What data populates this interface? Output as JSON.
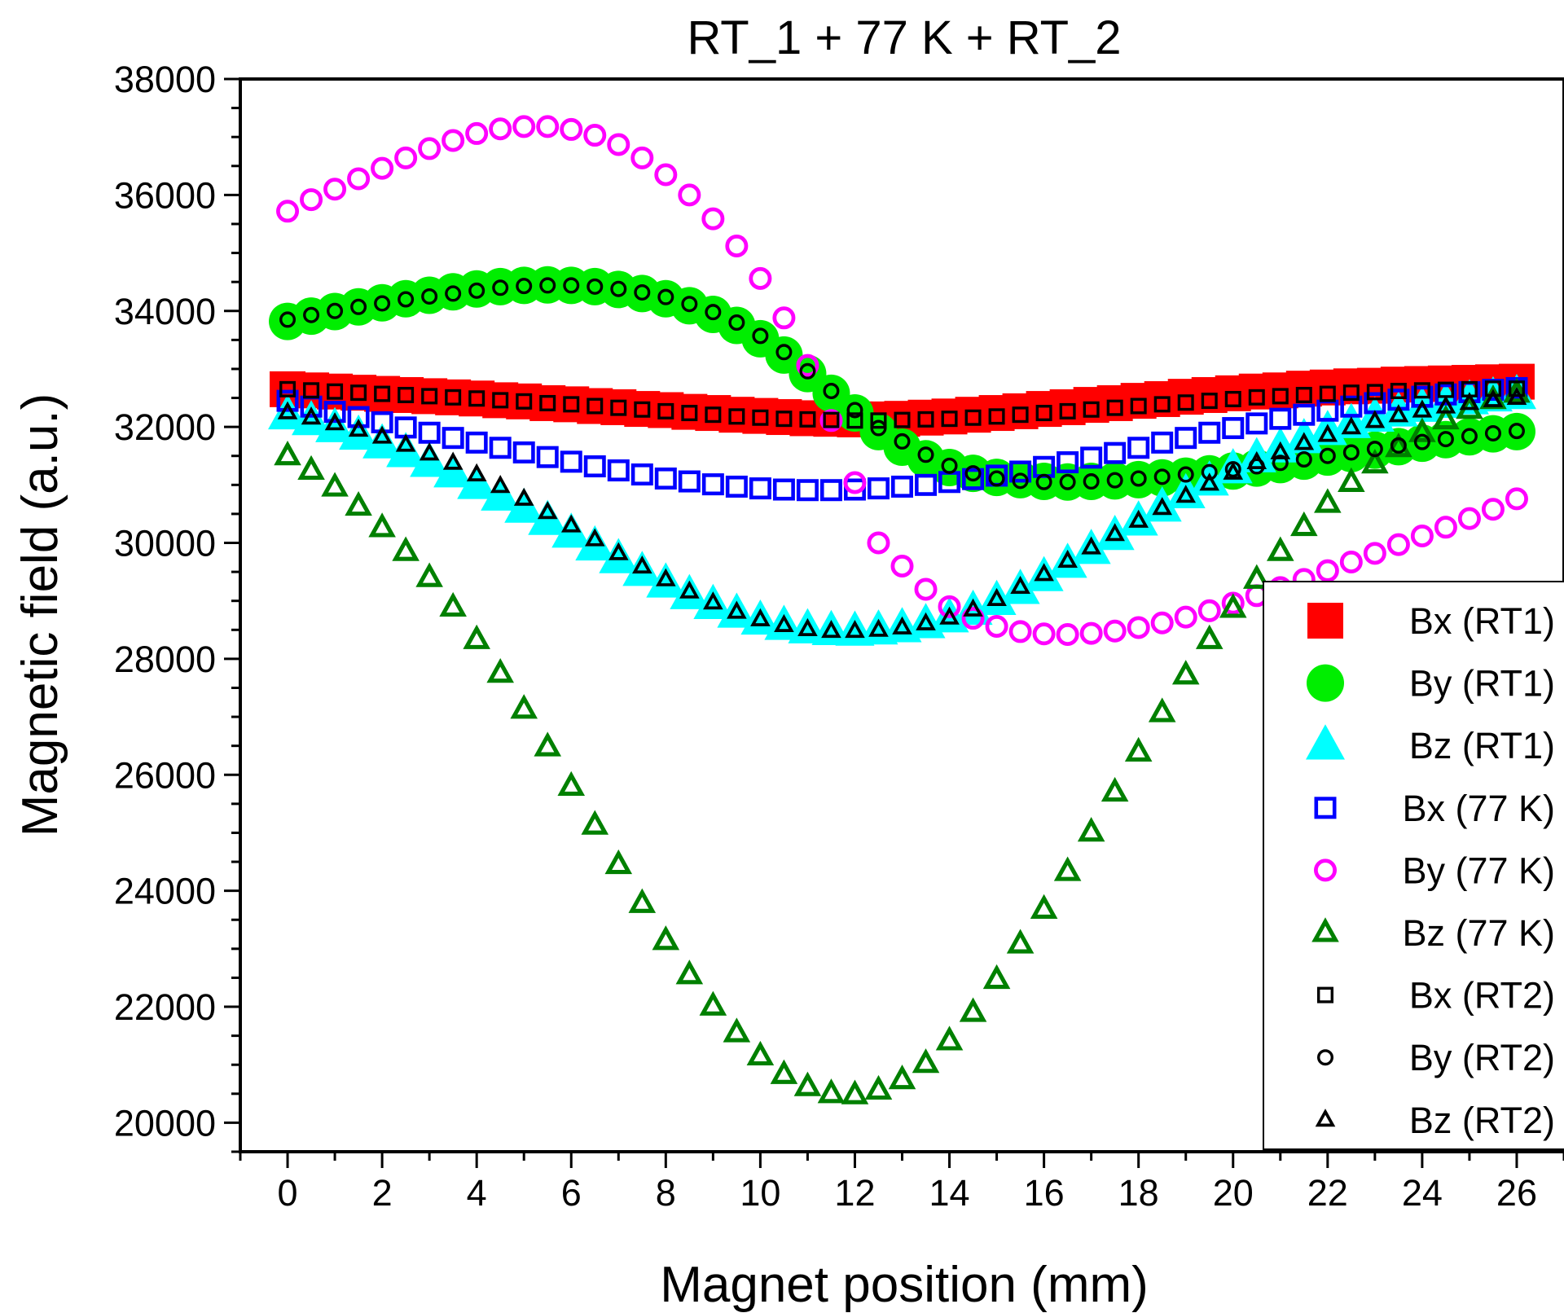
{
  "chart_data": {
    "type": "scatter",
    "title": "RT_1 + 77 K + RT_2",
    "xlabel": "Magnet position (mm)",
    "ylabel": "Magnetic field (a.u.)",
    "xlim": [
      -1,
      27
    ],
    "ylim": [
      19500,
      38000
    ],
    "xticks": [
      0,
      2,
      4,
      6,
      8,
      10,
      12,
      14,
      16,
      18,
      20,
      22,
      24,
      26
    ],
    "yticks": [
      20000,
      22000,
      24000,
      26000,
      28000,
      30000,
      32000,
      34000,
      36000,
      38000
    ],
    "legend_position": "right",
    "x": [
      0,
      0.5,
      1,
      1.5,
      2,
      2.5,
      3,
      3.5,
      4,
      4.5,
      5,
      5.5,
      6,
      6.5,
      7,
      7.5,
      8,
      8.5,
      9,
      9.5,
      10,
      10.5,
      11,
      11.5,
      12,
      12.5,
      13,
      13.5,
      14,
      14.5,
      15,
      15.5,
      16,
      16.5,
      17,
      17.5,
      18,
      18.5,
      19,
      19.5,
      20,
      20.5,
      21,
      21.5,
      22,
      22.5,
      23,
      23.5,
      24,
      24.5,
      25,
      25.5,
      26
    ],
    "series": [
      {
        "name": "Bx (RT1)",
        "marker": "square",
        "filled": true,
        "color": "#ff0000",
        "size": 44,
        "values": [
          32650,
          32630,
          32610,
          32590,
          32570,
          32550,
          32530,
          32510,
          32490,
          32460,
          32440,
          32410,
          32390,
          32360,
          32340,
          32310,
          32290,
          32260,
          32240,
          32210,
          32190,
          32170,
          32150,
          32140,
          32130,
          32130,
          32140,
          32160,
          32180,
          32210,
          32240,
          32270,
          32310,
          32340,
          32380,
          32410,
          32450,
          32480,
          32520,
          32550,
          32580,
          32610,
          32630,
          32660,
          32680,
          32700,
          32710,
          32730,
          32740,
          32750,
          32760,
          32770,
          32780
        ]
      },
      {
        "name": "By (RT1)",
        "marker": "circle",
        "filled": true,
        "color": "#00ee00",
        "size": 46,
        "values": [
          33820,
          33910,
          33990,
          34070,
          34140,
          34210,
          34270,
          34330,
          34380,
          34420,
          34440,
          34450,
          34440,
          34420,
          34370,
          34300,
          34210,
          34090,
          33940,
          33750,
          33520,
          33240,
          32920,
          32580,
          32240,
          31920,
          31650,
          31450,
          31300,
          31200,
          31130,
          31090,
          31060,
          31050,
          31060,
          31070,
          31090,
          31120,
          31150,
          31190,
          31240,
          31290,
          31350,
          31410,
          31480,
          31540,
          31600,
          31660,
          31720,
          31780,
          31830,
          31880,
          31920
        ]
      },
      {
        "name": "Bz (RT1)",
        "marker": "triangle",
        "filled": true,
        "color": "#00ffff",
        "size": 48,
        "values": [
          32200,
          32100,
          31980,
          31850,
          31700,
          31550,
          31380,
          31200,
          31000,
          30800,
          30590,
          30380,
          30160,
          29940,
          29720,
          29500,
          29300,
          29100,
          28930,
          28780,
          28660,
          28570,
          28510,
          28480,
          28470,
          28490,
          28530,
          28600,
          28700,
          28830,
          29000,
          29190,
          29410,
          29640,
          29880,
          30120,
          30370,
          30610,
          30840,
          31060,
          31270,
          31460,
          31630,
          31790,
          31930,
          32050,
          32160,
          32250,
          32330,
          32400,
          32460,
          32510,
          32550
        ]
      },
      {
        "name": "Bx (77 K)",
        "marker": "square",
        "filled": false,
        "color": "#0000ff",
        "size": 27,
        "values": [
          32450,
          32350,
          32260,
          32170,
          32080,
          31990,
          31900,
          31810,
          31730,
          31640,
          31560,
          31480,
          31400,
          31320,
          31250,
          31180,
          31110,
          31060,
          31010,
          30970,
          30940,
          30920,
          30910,
          30910,
          30920,
          30940,
          30970,
          31000,
          31050,
          31100,
          31160,
          31230,
          31310,
          31390,
          31470,
          31550,
          31640,
          31730,
          31810,
          31900,
          31980,
          32060,
          32140,
          32210,
          32280,
          32350,
          32410,
          32470,
          32520,
          32560,
          32600,
          32640,
          32670
        ]
      },
      {
        "name": "By (77 K)",
        "marker": "circle",
        "filled": false,
        "color": "#ff00ff",
        "size": 28,
        "values": [
          35720,
          35920,
          36100,
          36280,
          36460,
          36640,
          36800,
          36940,
          37060,
          37140,
          37180,
          37180,
          37130,
          37030,
          36870,
          36640,
          36350,
          36000,
          35590,
          35120,
          34560,
          33880,
          33060,
          32110,
          31040,
          30000,
          29600,
          29200,
          28900,
          28700,
          28560,
          28470,
          28430,
          28420,
          28440,
          28480,
          28540,
          28620,
          28720,
          28830,
          28960,
          29090,
          29230,
          29370,
          29520,
          29670,
          29820,
          29970,
          30120,
          30270,
          30420,
          30580,
          30760
        ]
      },
      {
        "name": "Bz (77 K)",
        "marker": "triangle",
        "filled": false,
        "color": "#008000",
        "size": 30,
        "values": [
          31500,
          31250,
          30960,
          30630,
          30260,
          29850,
          29400,
          28890,
          28330,
          27750,
          27130,
          26480,
          25800,
          25130,
          24450,
          23780,
          23140,
          22550,
          22010,
          21550,
          21150,
          20830,
          20620,
          20500,
          20480,
          20560,
          20740,
          21020,
          21410,
          21900,
          22470,
          23080,
          23680,
          24330,
          25010,
          25700,
          26390,
          27070,
          27720,
          28330,
          28870,
          29370,
          29850,
          30280,
          30680,
          31040,
          31360,
          31640,
          31900,
          32120,
          32300,
          32470,
          32580
        ]
      },
      {
        "name": "Bx (RT2)",
        "marker": "square",
        "filled": false,
        "color": "#000000",
        "size": 20,
        "values": [
          32650,
          32630,
          32610,
          32590,
          32570,
          32550,
          32530,
          32510,
          32490,
          32460,
          32440,
          32410,
          32390,
          32360,
          32330,
          32300,
          32270,
          32240,
          32210,
          32180,
          32160,
          32140,
          32130,
          32120,
          32110,
          32110,
          32120,
          32130,
          32140,
          32160,
          32180,
          32210,
          32240,
          32270,
          32300,
          32330,
          32360,
          32390,
          32420,
          32450,
          32480,
          32510,
          32530,
          32550,
          32570,
          32590,
          32600,
          32620,
          32630,
          32640,
          32650,
          32660,
          32660
        ]
      },
      {
        "name": "By (RT2)",
        "marker": "circle",
        "filled": false,
        "color": "#000000",
        "size": 20,
        "values": [
          33850,
          33930,
          34000,
          34070,
          34130,
          34200,
          34250,
          34300,
          34350,
          34400,
          34430,
          34440,
          34440,
          34420,
          34380,
          34320,
          34240,
          34120,
          33980,
          33800,
          33570,
          33290,
          32960,
          32620,
          32290,
          31980,
          31750,
          31520,
          31330,
          31200,
          31110,
          31070,
          31050,
          31050,
          31060,
          31080,
          31110,
          31140,
          31180,
          31220,
          31270,
          31320,
          31380,
          31440,
          31500,
          31560,
          31620,
          31680,
          31740,
          31790,
          31840,
          31890,
          31930
        ]
      },
      {
        "name": "Bz (RT2)",
        "marker": "triangle",
        "filled": false,
        "color": "#000000",
        "size": 22,
        "values": [
          32250,
          32160,
          32060,
          31950,
          31830,
          31690,
          31540,
          31380,
          31180,
          30980,
          30760,
          30530,
          30300,
          30060,
          29820,
          29590,
          29370,
          29160,
          28970,
          28810,
          28680,
          28580,
          28510,
          28480,
          28480,
          28500,
          28540,
          28610,
          28710,
          28850,
          29030,
          29240,
          29460,
          29690,
          29920,
          30150,
          30380,
          30600,
          30810,
          31020,
          31210,
          31390,
          31560,
          31720,
          31860,
          31990,
          32100,
          32200,
          32280,
          32350,
          32410,
          32460,
          32500
        ]
      }
    ]
  }
}
